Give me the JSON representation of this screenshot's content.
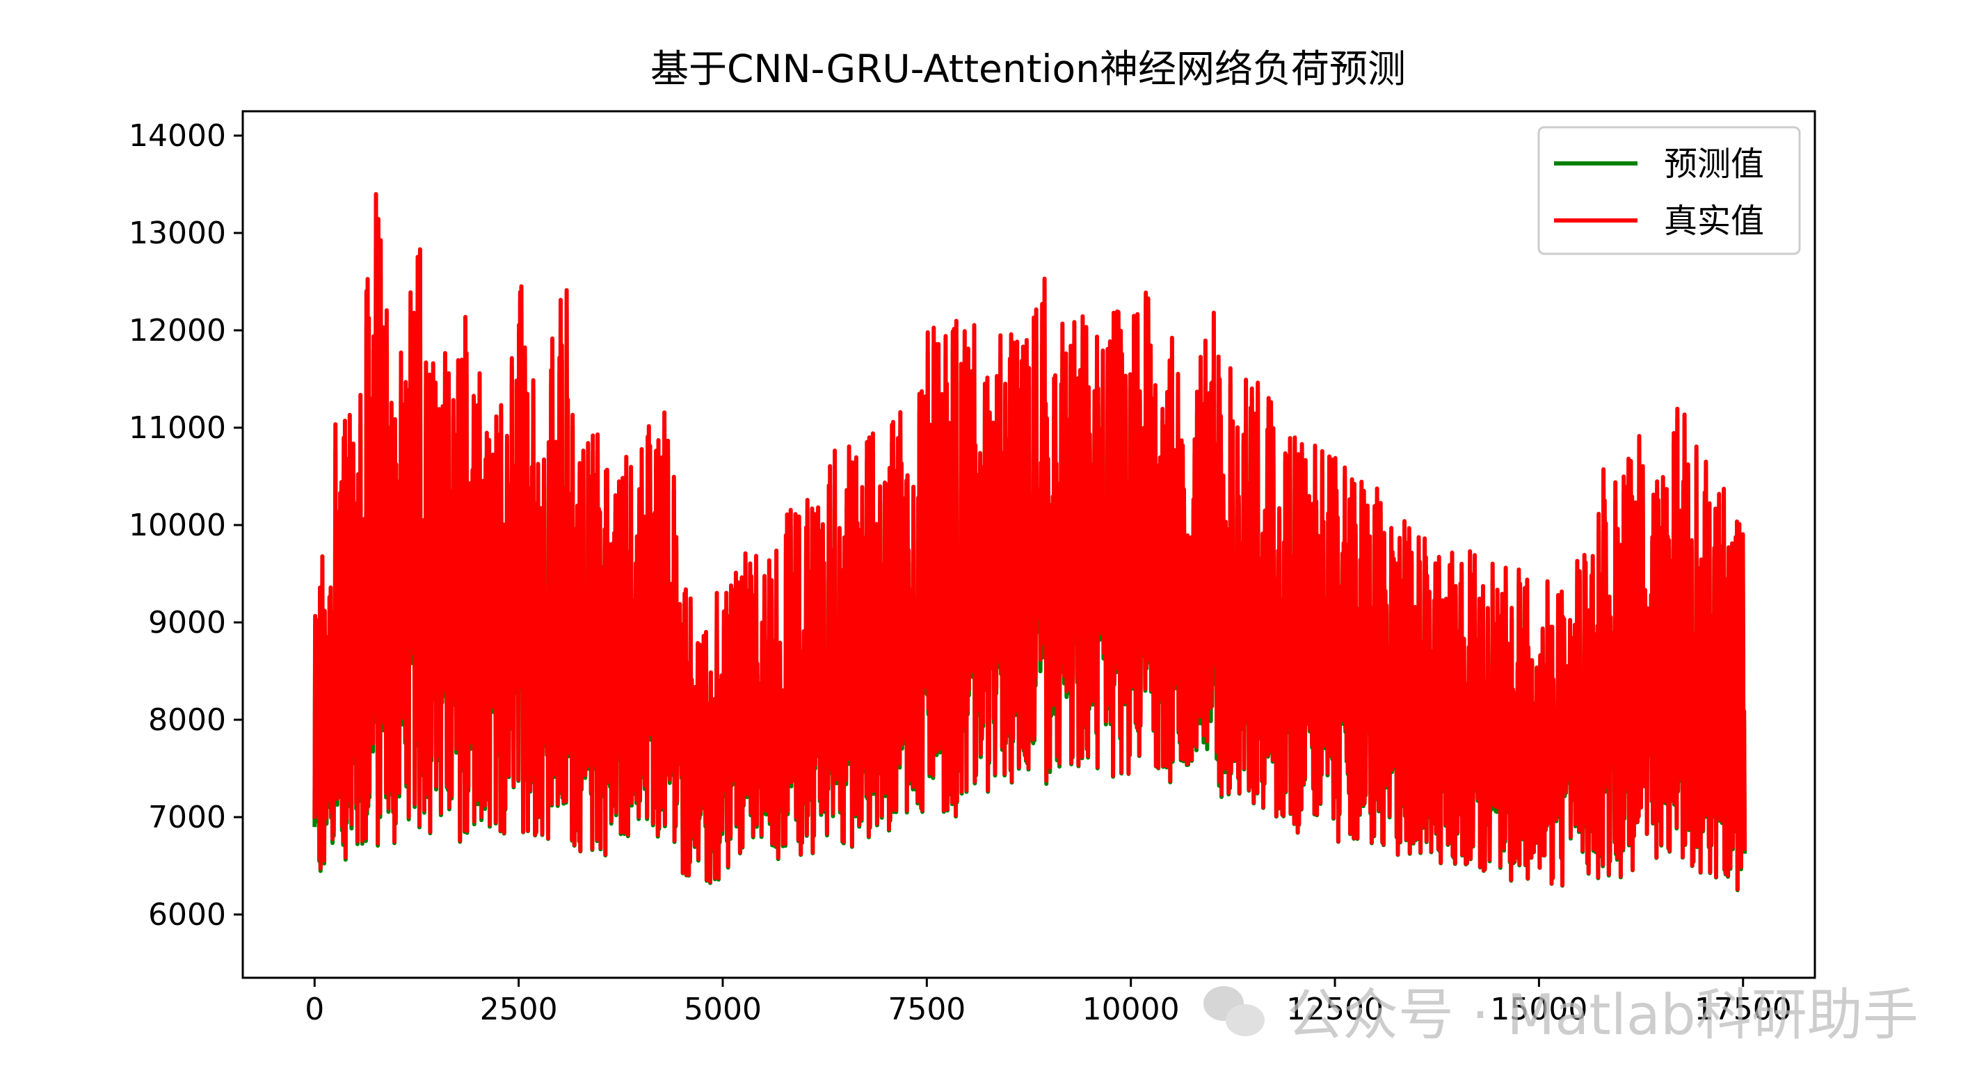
{
  "chart_data": {
    "type": "line",
    "title": "基于CNN-GRU-Attention神经网络负荷预测",
    "xlabel": "",
    "ylabel": "",
    "xlim": [
      -880,
      18380
    ],
    "ylim": [
      5350,
      14250
    ],
    "x_ticks": [
      0,
      2500,
      5000,
      7500,
      10000,
      12500,
      15000,
      17500
    ],
    "y_ticks": [
      6000,
      7000,
      8000,
      9000,
      10000,
      11000,
      12000,
      13000,
      14000
    ],
    "legend_position": "top-right",
    "grid": false,
    "x_range": [
      0,
      17520
    ],
    "series": [
      {
        "name": "预测值",
        "color": "#008000",
        "sample_step": 250,
        "lows": [
          6200,
          6050,
          6300,
          6250,
          6400,
          6500,
          6550,
          6450,
          6400,
          6350,
          6550,
          6500,
          6450,
          6400,
          6350,
          6450,
          6500,
          6400,
          6200,
          6100,
          6050,
          6400,
          6450,
          6300,
          6350,
          6450,
          6400,
          6550,
          6500,
          6600,
          6650,
          6700,
          6800,
          6900,
          7100,
          7150,
          7000,
          7200,
          7250,
          7100,
          7200,
          7300,
          7050,
          7100,
          6950,
          6900,
          6800,
          6750,
          6600,
          6700,
          6550,
          6500,
          6450,
          6400,
          6350,
          6300,
          6250,
          6300,
          6200,
          6150,
          6200,
          6100,
          6250,
          6150,
          6100,
          6200,
          6300,
          6250,
          6150,
          6050,
          6000,
          6100
        ],
        "highs": [
          8700,
          11200,
          10700,
          13300,
          11000,
          13400,
          11200,
          12400,
          11300,
          11100,
          13000,
          11000,
          13200,
          10900,
          10800,
          10600,
          10900,
          11400,
          9900,
          8700,
          9600,
          9800,
          9600,
          9900,
          10200,
          10500,
          10700,
          11000,
          11200,
          11300,
          11800,
          11900,
          12000,
          11900,
          11800,
          11700,
          12600,
          11900,
          12100,
          12400,
          12000,
          12500,
          11800,
          11200,
          11800,
          11400,
          11600,
          11200,
          11000,
          10800,
          10600,
          10500,
          10300,
          10100,
          9900,
          9800,
          9700,
          9600,
          9500,
          9500,
          9500,
          9400,
          9600,
          10500,
          10600,
          11000,
          10500,
          11300,
          10800,
          10300,
          9800,
          10800
        ]
      },
      {
        "name": "真实值",
        "color": "#ff0000",
        "sample_step": 250,
        "lows": [
          6200,
          6050,
          6300,
          6250,
          6400,
          6500,
          6550,
          6450,
          6400,
          6350,
          6550,
          6500,
          6450,
          6400,
          6350,
          6450,
          6500,
          6400,
          6200,
          6100,
          6050,
          6400,
          6450,
          6300,
          6350,
          6450,
          6400,
          6550,
          6500,
          6600,
          6650,
          6700,
          6800,
          6900,
          7100,
          7150,
          7000,
          7200,
          7250,
          7100,
          7200,
          7300,
          7050,
          7100,
          6950,
          6900,
          6800,
          6750,
          6600,
          6700,
          6550,
          6500,
          6450,
          6400,
          6350,
          6300,
          6250,
          6300,
          6200,
          6150,
          6200,
          6100,
          6250,
          6150,
          6100,
          6200,
          6300,
          6250,
          6150,
          6050,
          6000,
          6100
        ],
        "highs": [
          9000,
          11500,
          11000,
          13700,
          11200,
          13750,
          11400,
          12600,
          11600,
          11200,
          13100,
          11100,
          13400,
          11000,
          11000,
          10800,
          11100,
          11600,
          10000,
          8800,
          9800,
          9900,
          9800,
          10100,
          10300,
          10700,
          10900,
          11200,
          11400,
          11500,
          12000,
          12100,
          12200,
          12100,
          12000,
          11900,
          13200,
          12100,
          12300,
          12600,
          12100,
          12600,
          12000,
          11300,
          12500,
          11500,
          11700,
          11300,
          11100,
          10900,
          10700,
          10600,
          10400,
          10200,
          10000,
          9900,
          9800,
          9700,
          9700,
          9600,
          9500,
          9500,
          9700,
          10700,
          10800,
          11000,
          10600,
          11400,
          10900,
          10400,
          10000,
          10850
        ]
      }
    ]
  },
  "watermark": {
    "text": "公众号 · Matlab科研助手",
    "icon": "wechat-icon"
  }
}
